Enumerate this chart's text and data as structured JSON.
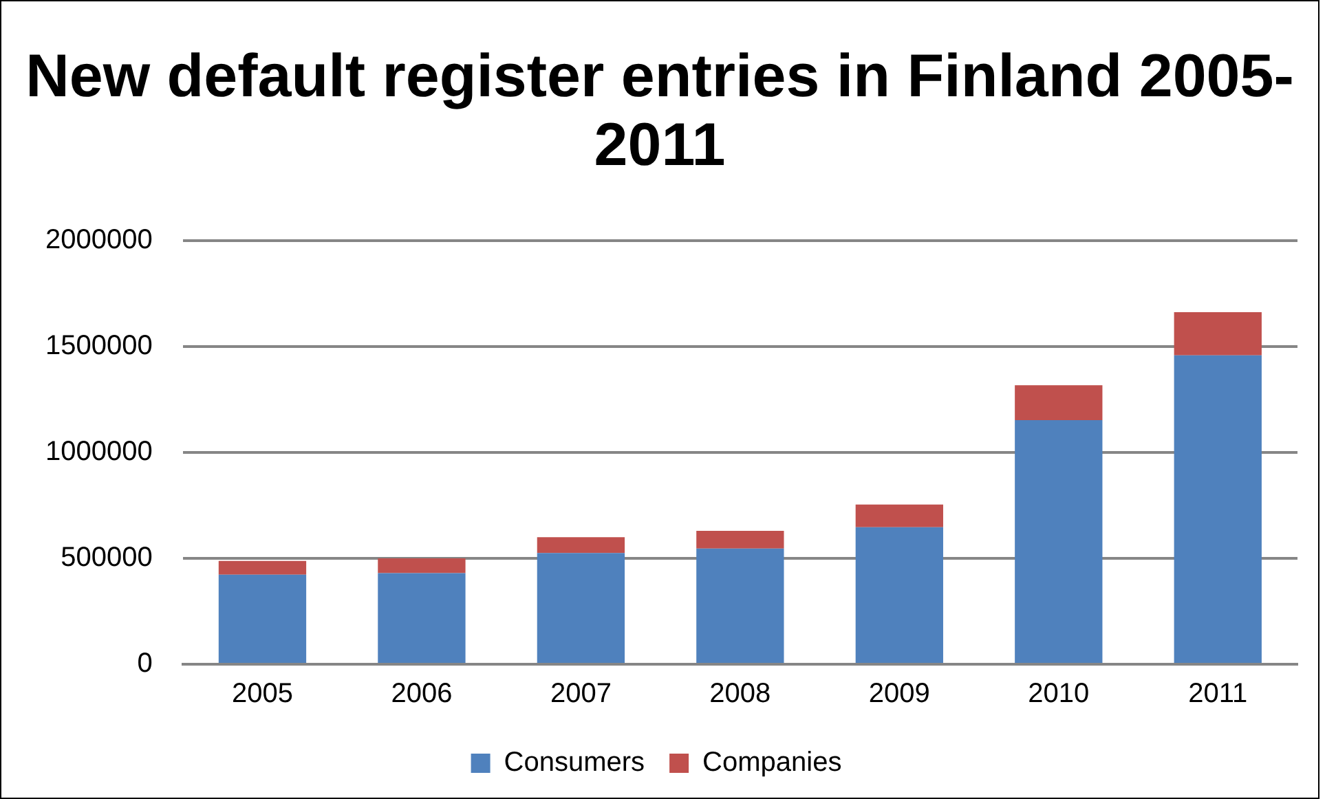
{
  "chart_data": {
    "type": "bar",
    "title": "New default register entries in Finland 2005-2011",
    "categories": [
      "2005",
      "2006",
      "2007",
      "2008",
      "2009",
      "2010",
      "2011"
    ],
    "stacked": true,
    "series": [
      {
        "name": "Consumers",
        "color": "#4f81bd",
        "values": [
          423000,
          430000,
          525000,
          546000,
          647000,
          1153000,
          1459000
        ]
      },
      {
        "name": "Companies",
        "color": "#c0504d",
        "values": [
          65000,
          70000,
          75000,
          84000,
          107000,
          164000,
          203000
        ]
      }
    ],
    "ylim": [
      0,
      2000000
    ],
    "yticks": [
      0,
      500000,
      1000000,
      1500000,
      2000000
    ],
    "grid": "y",
    "legend": "bottom"
  }
}
